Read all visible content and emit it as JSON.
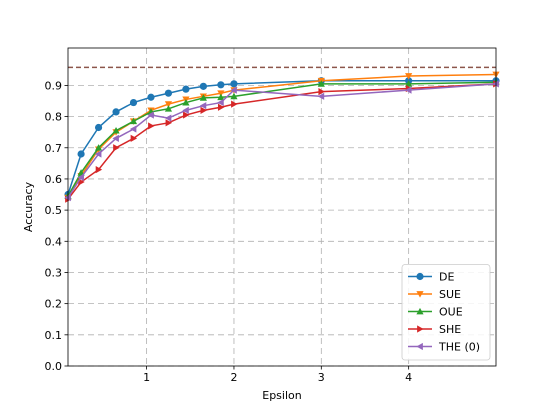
{
  "chart_data": {
    "type": "line",
    "xlabel": "Epsilon",
    "ylabel": "Accuracy",
    "xlim": [
      0.1,
      5.0
    ],
    "ylim": [
      0.0,
      1.02
    ],
    "x_ticks": [
      1,
      2,
      3,
      4
    ],
    "x_tick_labels": [
      "1",
      "2",
      "3",
      "4"
    ],
    "y_ticks": [
      0.0,
      0.1,
      0.2,
      0.3,
      0.4,
      0.5,
      0.6,
      0.7,
      0.8,
      0.9
    ],
    "y_tick_labels": [
      "0.0",
      "0.1",
      "0.2",
      "0.3",
      "0.4",
      "0.5",
      "0.6",
      "0.7",
      "0.8",
      "0.9"
    ],
    "grid": true,
    "grid_style": "dashed",
    "legend_position": "lower-right",
    "reference_line": {
      "y": 0.958,
      "color": "#8c564b",
      "style": "dashed"
    },
    "x": [
      0.1,
      0.25,
      0.45,
      0.65,
      0.85,
      1.05,
      1.25,
      1.45,
      1.65,
      1.85,
      2.0,
      3.0,
      4.0,
      5.0
    ],
    "series": [
      {
        "name": "DE",
        "color": "#1f77b4",
        "marker": "circle",
        "values": [
          0.55,
          0.68,
          0.765,
          0.815,
          0.845,
          0.862,
          0.875,
          0.888,
          0.897,
          0.902,
          0.905,
          0.915,
          0.915,
          0.915
        ]
      },
      {
        "name": "SUE",
        "color": "#ff7f0e",
        "marker": "triangle-down",
        "values": [
          0.54,
          0.61,
          0.695,
          0.75,
          0.785,
          0.82,
          0.84,
          0.855,
          0.865,
          0.875,
          0.885,
          0.915,
          0.93,
          0.935
        ]
      },
      {
        "name": "OUE",
        "color": "#2ca02c",
        "marker": "triangle-up",
        "values": [
          0.545,
          0.62,
          0.7,
          0.755,
          0.785,
          0.815,
          0.825,
          0.845,
          0.86,
          0.862,
          0.865,
          0.905,
          0.905,
          0.91
        ]
      },
      {
        "name": "SHE",
        "color": "#d62728",
        "marker": "triangle-right",
        "values": [
          0.535,
          0.59,
          0.63,
          0.7,
          0.73,
          0.77,
          0.78,
          0.805,
          0.82,
          0.83,
          0.84,
          0.88,
          0.89,
          0.905
        ]
      },
      {
        "name": "THE (0)",
        "color": "#9467bd",
        "marker": "triangle-left",
        "values": [
          0.54,
          0.605,
          0.68,
          0.73,
          0.76,
          0.805,
          0.795,
          0.82,
          0.835,
          0.845,
          0.885,
          0.865,
          0.885,
          0.905
        ]
      }
    ]
  }
}
